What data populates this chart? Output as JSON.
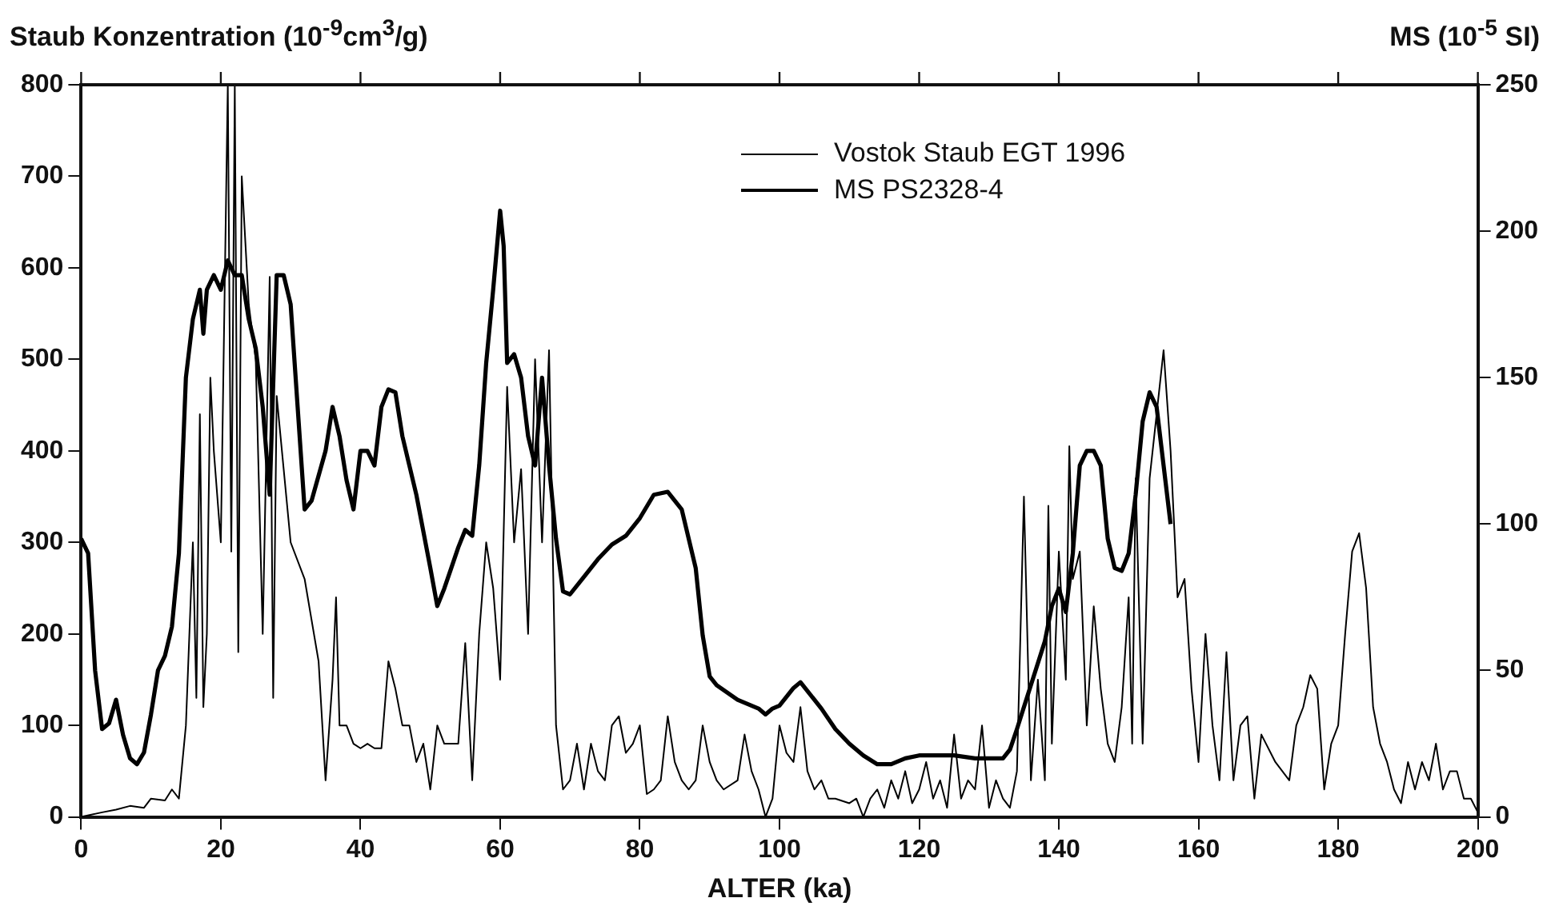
{
  "chart_data": {
    "type": "line",
    "xlabel": "ALTER (ka)",
    "ylabel": "Staub Konzentration (10$^{-9}$cm$^{3}$/g)",
    "y2label": "MS (10$^{-5}$ SI)",
    "xlim": [
      0,
      200
    ],
    "xticks": [
      0,
      20,
      40,
      60,
      80,
      100,
      120,
      140,
      160,
      180,
      200
    ],
    "ylim": [
      0,
      800
    ],
    "yticks": [
      0,
      100,
      200,
      300,
      400,
      500,
      600,
      700,
      800
    ],
    "y2lim": [
      0,
      250
    ],
    "y2ticks": [
      0,
      50,
      100,
      150,
      200,
      250
    ],
    "grid": false,
    "legend": "top right",
    "marker": "none",
    "line_style": "solid",
    "series": [
      {
        "name": "Vostok Staub EGT 1996",
        "color": "#000000",
        "x": [
          0,
          3,
          5,
          7,
          9,
          10,
          12,
          13,
          14,
          15,
          16,
          16.5,
          17,
          17.5,
          18,
          18.5,
          19,
          20,
          21,
          21.5,
          22,
          22.5,
          23,
          24,
          25,
          26,
          27,
          27.5,
          28,
          29,
          30,
          32,
          34,
          35,
          36,
          36.5,
          37,
          38,
          39,
          40,
          41,
          42,
          43,
          44,
          45,
          46,
          47,
          48,
          49,
          50,
          51,
          52,
          53,
          54,
          55,
          56,
          57,
          58,
          59,
          60,
          61,
          62,
          63,
          64,
          65,
          66,
          67,
          68,
          69,
          70,
          71,
          72,
          73,
          74,
          75,
          76,
          77,
          78,
          79,
          80,
          81,
          82,
          83,
          84,
          85,
          86,
          87,
          88,
          89,
          90,
          91,
          92,
          94,
          95,
          96,
          97,
          98,
          99,
          100,
          101,
          102,
          103,
          104,
          105,
          106,
          107,
          108,
          110,
          111,
          112,
          113,
          114,
          115,
          116,
          117,
          118,
          119,
          120,
          121,
          122,
          123,
          124,
          125,
          126,
          127,
          128,
          129,
          130,
          131,
          132,
          133,
          134,
          135,
          136,
          137,
          138,
          138.5,
          139,
          140,
          141,
          141.5,
          142,
          143,
          144,
          145,
          146,
          147,
          148,
          149,
          150,
          150.5,
          151,
          152,
          153,
          154,
          155,
          156,
          157,
          158,
          159,
          160,
          161,
          162,
          163,
          164,
          165,
          166,
          167,
          168,
          169,
          171,
          173,
          174,
          175,
          176,
          177,
          178,
          179,
          180,
          181,
          182,
          183,
          184,
          185,
          186,
          187,
          188,
          189,
          190,
          191,
          192,
          193,
          194,
          195,
          196,
          197,
          198,
          199,
          200
        ],
        "values": [
          0,
          5,
          8,
          12,
          10,
          20,
          18,
          30,
          20,
          100,
          300,
          130,
          440,
          120,
          200,
          480,
          400,
          300,
          800,
          290,
          800,
          180,
          700,
          560,
          500,
          200,
          590,
          130,
          460,
          380,
          300,
          260,
          170,
          40,
          150,
          240,
          100,
          100,
          80,
          75,
          80,
          75,
          75,
          170,
          140,
          100,
          100,
          60,
          80,
          30,
          100,
          80,
          80,
          80,
          190,
          40,
          200,
          300,
          250,
          150,
          470,
          300,
          380,
          200,
          500,
          300,
          510,
          100,
          30,
          40,
          80,
          30,
          80,
          50,
          40,
          100,
          110,
          70,
          80,
          100,
          25,
          30,
          40,
          110,
          60,
          40,
          30,
          40,
          100,
          60,
          40,
          30,
          40,
          90,
          50,
          30,
          0,
          20,
          100,
          70,
          60,
          120,
          50,
          30,
          40,
          20,
          20,
          15,
          20,
          0,
          20,
          30,
          10,
          40,
          20,
          50,
          15,
          30,
          60,
          20,
          40,
          10,
          90,
          20,
          40,
          30,
          100,
          10,
          40,
          20,
          10,
          50,
          350,
          40,
          150,
          40,
          340,
          80,
          290,
          150,
          405,
          260,
          290,
          100,
          230,
          140,
          80,
          60,
          120,
          240,
          80,
          370,
          80,
          370,
          440,
          510,
          400,
          240,
          260,
          140,
          60,
          200,
          100,
          40,
          180,
          40,
          100,
          110,
          20,
          90,
          60,
          40,
          100,
          120,
          155,
          140,
          30,
          80,
          100,
          200,
          290,
          310,
          250,
          120,
          80,
          60,
          30,
          15,
          60,
          30,
          60,
          40,
          80,
          30,
          50,
          50,
          20,
          20,
          5
        ]
      },
      {
        "name": "MS PS2328-4",
        "color": "#000000",
        "axis": "y2",
        "x": [
          0,
          1,
          2,
          3,
          4,
          5,
          6,
          7,
          8,
          9,
          10,
          11,
          12,
          13,
          14,
          15,
          16,
          17,
          17.5,
          18,
          19,
          20,
          21,
          22,
          23,
          24,
          25,
          26,
          27,
          28,
          29,
          30,
          31,
          32,
          33,
          35,
          36,
          37,
          38,
          39,
          40,
          41,
          42,
          43,
          44,
          45,
          46,
          48,
          50,
          51,
          52,
          53,
          54,
          55,
          56,
          57,
          58,
          59,
          60,
          60.5,
          61,
          62,
          63,
          64,
          65,
          66,
          67,
          68,
          69,
          70,
          72,
          74,
          76,
          78,
          80,
          82,
          84,
          86,
          88,
          89,
          90,
          91,
          94,
          97,
          98,
          99,
          100,
          102,
          103,
          104,
          106,
          108,
          110,
          112,
          114,
          116,
          118,
          120,
          122,
          125,
          128,
          130,
          132,
          133,
          134,
          136,
          138,
          139,
          140,
          141,
          142,
          143,
          144,
          145,
          146,
          147,
          148,
          149,
          150,
          151,
          152,
          153,
          154,
          155,
          156
        ],
        "values": [
          95,
          90,
          50,
          30,
          32,
          40,
          28,
          20,
          18,
          22,
          35,
          50,
          55,
          65,
          90,
          150,
          170,
          180,
          165,
          180,
          185,
          180,
          190,
          185,
          185,
          170,
          160,
          140,
          110,
          185,
          185,
          175,
          140,
          105,
          108,
          125,
          140,
          130,
          115,
          105,
          125,
          125,
          120,
          140,
          146,
          145,
          130,
          110,
          85,
          72,
          78,
          85,
          92,
          98,
          96,
          120,
          155,
          180,
          207,
          195,
          155,
          158,
          150,
          130,
          120,
          150,
          120,
          95,
          77,
          76,
          82,
          88,
          93,
          96,
          102,
          110,
          111,
          105,
          85,
          62,
          48,
          45,
          40,
          37,
          35,
          37,
          38,
          44,
          46,
          43,
          37,
          30,
          25,
          21,
          18,
          18,
          20,
          21,
          21,
          21,
          20,
          20,
          20,
          23,
          30,
          45,
          60,
          72,
          78,
          70,
          90,
          120,
          125,
          125,
          120,
          95,
          85,
          84,
          90,
          110,
          135,
          145,
          140,
          120,
          100
        ]
      }
    ]
  }
}
